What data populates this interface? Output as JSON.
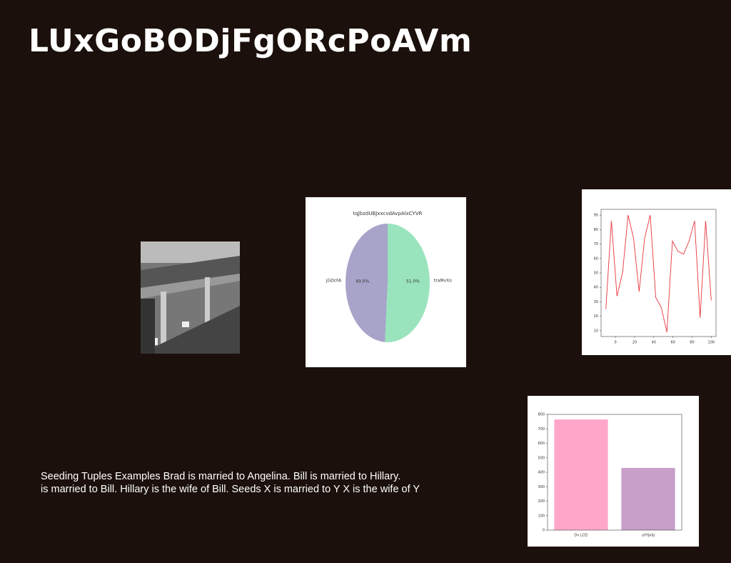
{
  "title": "LUxGoBODjFgORcPoAVm",
  "text_lines": [
    "Seeding Tuples Examples Brad is married to Angelina. Bill is married to Hillary.",
    "is married to Bill. Hillary is the wife of Bill. Seeds X is married to Y X is the wife of Y"
  ],
  "chart_data": [
    {
      "type": "pie",
      "title": "tqJbzdUBJxxcvdAvpAlxCYVR",
      "categories": [
        "jGDcFA",
        "traMvXo"
      ],
      "values": [
        49.0,
        51.0
      ],
      "value_labels": [
        "49.0%",
        "51.0%"
      ],
      "colors": [
        "#a8a3c9",
        "#99e4bd"
      ]
    },
    {
      "type": "line",
      "x": [
        -10,
        -4.2,
        1.6,
        7.4,
        13.2,
        18.9,
        24.7,
        30.5,
        36.3,
        42.1,
        47.9,
        53.7,
        59.5,
        65.3,
        71.1,
        76.8,
        82.6,
        88.4,
        94.2,
        100
      ],
      "series": [
        {
          "color": "#e8343a",
          "values": [
            25,
            86,
            34,
            50,
            90,
            74,
            37,
            74,
            90,
            33,
            26,
            9,
            72,
            65,
            63,
            72,
            86,
            19,
            86,
            31
          ]
        }
      ],
      "xlim": [
        -15,
        105
      ],
      "xticks": [
        0,
        20,
        40,
        60,
        80,
        100
      ],
      "ylim": [
        6,
        94
      ],
      "yticks": [
        10,
        20,
        30,
        40,
        50,
        60,
        70,
        80,
        90
      ]
    },
    {
      "type": "bar",
      "categories": [
        "Dv LCEi",
        "uIYIJxbj"
      ],
      "values": [
        765,
        430
      ],
      "colors": [
        "#ffa6c9",
        "#c79fc8"
      ],
      "ylim": [
        0,
        800
      ],
      "yticks": [
        0,
        100,
        200,
        300,
        400,
        500,
        600,
        700,
        800
      ]
    }
  ]
}
